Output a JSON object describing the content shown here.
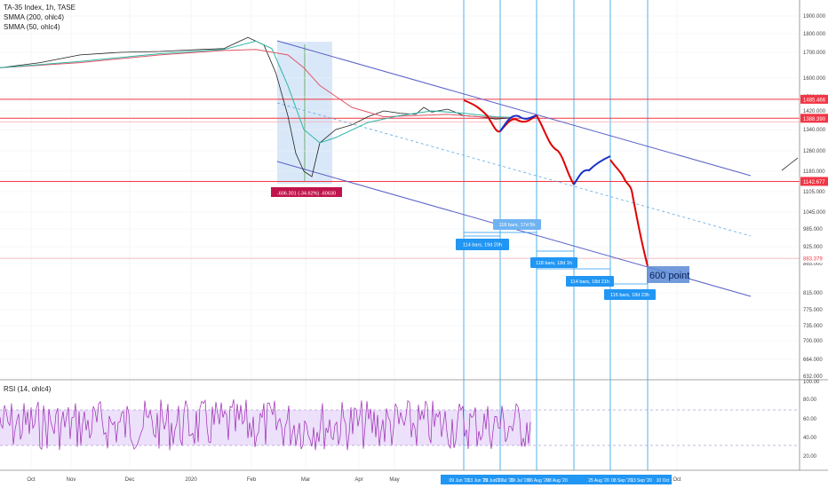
{
  "legend": {
    "title": "TA-35 Index, 1h, TASE",
    "smma200": "SMMA (200, ohlc4)",
    "smma50": "SMMA (50, ohlc4)",
    "rsi": "RSI (14, ohlc4)"
  },
  "colors": {
    "price": "#1f1f1f",
    "smma200": "#e0566a",
    "smma50": "#2eb6a4",
    "channel": "#5860c8",
    "hline": "#f23645",
    "vline": "#4fb3e8",
    "forecast_red": "#e00000",
    "forecast_blue": "#1530c8",
    "label_blue": "#2196f3",
    "label_red": "#c0144c",
    "rsi": "#9c27b0"
  },
  "chart_data": {
    "type": "line",
    "y_ticks": [
      "1900.000",
      "1800.000",
      "1700.000",
      "1600.000",
      "1500.000",
      "1420.000",
      "1340.000",
      "1260.000",
      "1180.000",
      "1105.000",
      "1045.000",
      "985.000",
      "925.000",
      "865.000",
      "815.000",
      "775.000",
      "735.000",
      "700.000",
      "664.000",
      "632.000"
    ],
    "x_ticks": [
      "Oct",
      "Nov",
      "Dec",
      "2020",
      "Feb",
      "Mar",
      "Apr",
      "May",
      "Oct"
    ],
    "x_date_labels": [
      "09 Jun '20",
      "13 Jun '20",
      "29 Jun '20",
      "11 Jul '20",
      "19 Jul '20",
      "06 Aug '20",
      "08 Aug '20",
      "25 Aug '20",
      "08 Sep '20",
      "13 Sep '20",
      "10 Oct"
    ],
    "price_labels": [
      {
        "text": "1485.466",
        "value": 1485.466
      },
      {
        "text": "1388.390",
        "value": 1388.39
      },
      {
        "text": "1142.677",
        "value": 1142.677
      },
      {
        "text": "883.379",
        "value": 883.379
      }
    ],
    "drop_label": "-606.301 (-34.62%) -60630",
    "bar_labels": [
      "118 bars, 17d 5h",
      "114 bars, 19d 20h",
      "118 bars, 18d 1h",
      "114 bars, 18d 21h",
      "116 bars, 18d 23h"
    ],
    "annotation": "600 point",
    "rsi": {
      "y_ticks": [
        "100.00",
        "80.00",
        "60.00",
        "40.00",
        "20.00"
      ],
      "upper_band": 70,
      "lower_band": 30
    },
    "series": [
      {
        "name": "TA-35 Index",
        "x": [
          0,
          0.05,
          0.1,
          0.15,
          0.2,
          0.25,
          0.28,
          0.3,
          0.31,
          0.33,
          0.345,
          0.36,
          0.37,
          0.38,
          0.39,
          0.4,
          0.42,
          0.44,
          0.46,
          0.48,
          0.5,
          0.52,
          0.53,
          0.54,
          0.56,
          0.58,
          0.6,
          0.62,
          0.64
        ],
        "values": [
          1640,
          1660,
          1690,
          1700,
          1705,
          1715,
          1720,
          1760,
          1780,
          1740,
          1620,
          1400,
          1250,
          1180,
          1160,
          1290,
          1340,
          1360,
          1395,
          1420,
          1410,
          1405,
          1440,
          1415,
          1430,
          1400,
          1395,
          1385,
          1390
        ]
      },
      {
        "name": "SMMA (200, ohlc4)",
        "x": [
          0,
          0.1,
          0.2,
          0.28,
          0.32,
          0.36,
          0.38,
          0.4,
          0.44,
          0.48,
          0.52,
          0.56,
          0.6,
          0.64
        ],
        "values": [
          1640,
          1660,
          1690,
          1710,
          1715,
          1690,
          1640,
          1560,
          1440,
          1395,
          1400,
          1405,
          1395,
          1390
        ]
      },
      {
        "name": "SMMA (50, ohlc4)",
        "x": [
          0,
          0.1,
          0.2,
          0.28,
          0.32,
          0.34,
          0.36,
          0.38,
          0.4,
          0.42,
          0.46,
          0.5,
          0.54,
          0.58,
          0.62,
          0.64
        ],
        "values": [
          1640,
          1665,
          1695,
          1715,
          1760,
          1720,
          1560,
          1340,
          1290,
          1310,
          1370,
          1400,
          1420,
          1410,
          1395,
          1392
        ]
      }
    ]
  }
}
